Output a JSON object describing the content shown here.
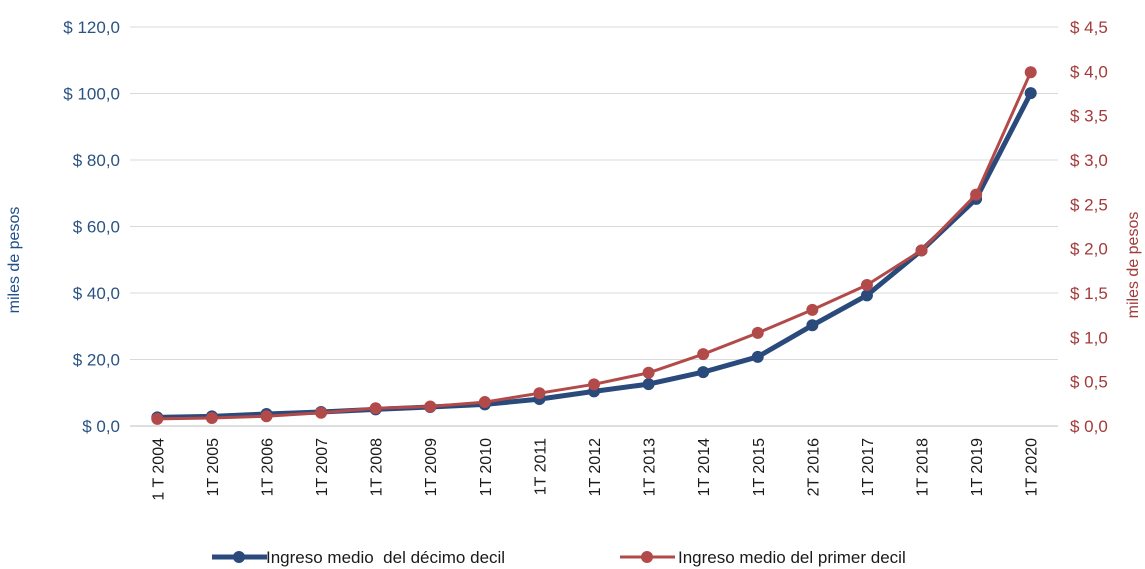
{
  "chart_data": {
    "type": "line",
    "categories": [
      "1 T 2004",
      "1T 2005",
      "1T 2006",
      "1T 2007",
      "1T 2008",
      "1T 2009",
      "1T 2010",
      "1T 2011",
      "1T 2012",
      "1T 2013",
      "1T 2014",
      "1T 2015",
      "2T 2016",
      "1T 2017",
      "1T 2018",
      "1T 2019",
      "1T 2020"
    ],
    "y_left": {
      "label": "miles de pesos",
      "range": [
        0,
        120
      ],
      "ticks": [
        "$ 0,0",
        "$ 20,0",
        "$ 40,0",
        "$ 60,0",
        "$ 80,0",
        "$ 100,0",
        "$ 120,0"
      ],
      "color": "#2a5384"
    },
    "y_right": {
      "label": "miles de pesos",
      "range": [
        0,
        4.5
      ],
      "ticks": [
        "$ 0,0",
        "$ 0,5",
        "$ 1,0",
        "$ 1,5",
        "$ 2,0",
        "$ 2,5",
        "$ 3,0",
        "$ 3,5",
        "$ 4,0",
        "$ 4,5"
      ],
      "color": "#a33a3a"
    },
    "series": [
      {
        "name": "Ingreso medio  del décimo decil",
        "axis": "left",
        "color": "#2a4a7c",
        "values": [
          2.6,
          2.9,
          3.6,
          4.2,
          5.0,
          5.7,
          6.5,
          8.1,
          10.4,
          12.6,
          16.2,
          20.8,
          30.3,
          39.3,
          52.8,
          68.3,
          100.1
        ]
      },
      {
        "name": "Ingreso medio del primer decil",
        "axis": "right",
        "color": "#b34a4a",
        "values": [
          0.08,
          0.09,
          0.11,
          0.15,
          0.2,
          0.22,
          0.27,
          0.37,
          0.47,
          0.6,
          0.81,
          1.05,
          1.31,
          1.59,
          1.98,
          2.61,
          3.99
        ]
      }
    ],
    "grid": true,
    "legend_position": "bottom"
  }
}
